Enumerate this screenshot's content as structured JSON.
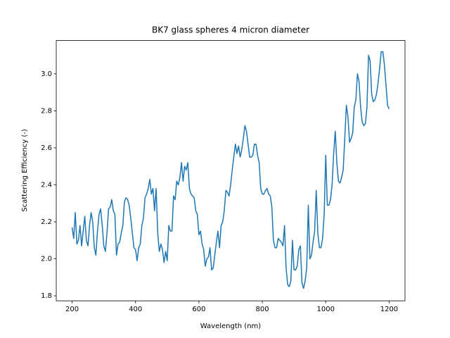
{
  "chart_data": {
    "type": "line",
    "title": "BK7 glass spheres 4 micron diameter",
    "x_label": "Wavelength (nm)",
    "y_label": "Scattering Efficiency (-)",
    "x": [
      200,
      205,
      210,
      215,
      220,
      225,
      230,
      235,
      240,
      245,
      250,
      255,
      260,
      265,
      270,
      275,
      280,
      285,
      290,
      295,
      300,
      305,
      310,
      315,
      320,
      325,
      330,
      335,
      340,
      345,
      350,
      355,
      360,
      365,
      370,
      375,
      380,
      385,
      390,
      395,
      400,
      405,
      410,
      415,
      420,
      425,
      430,
      435,
      440,
      445,
      450,
      455,
      460,
      465,
      470,
      475,
      480,
      485,
      490,
      495,
      500,
      505,
      510,
      515,
      520,
      525,
      530,
      535,
      540,
      545,
      550,
      555,
      560,
      565,
      570,
      575,
      580,
      585,
      590,
      595,
      600,
      605,
      610,
      615,
      620,
      625,
      630,
      635,
      640,
      645,
      650,
      655,
      660,
      665,
      670,
      675,
      680,
      685,
      690,
      695,
      700,
      705,
      710,
      715,
      720,
      725,
      730,
      735,
      740,
      745,
      750,
      755,
      760,
      765,
      770,
      775,
      780,
      785,
      790,
      795,
      800,
      805,
      810,
      815,
      820,
      825,
      830,
      835,
      840,
      845,
      850,
      855,
      860,
      865,
      870,
      875,
      880,
      885,
      890,
      895,
      900,
      905,
      910,
      915,
      920,
      925,
      930,
      935,
      940,
      945,
      950,
      955,
      960,
      965,
      970,
      975,
      980,
      985,
      990,
      995,
      1000,
      1005,
      1010,
      1015,
      1020,
      1025,
      1030,
      1035,
      1040,
      1045,
      1050,
      1055,
      1060,
      1065,
      1070,
      1075,
      1080,
      1085,
      1090,
      1095,
      1100,
      1105,
      1110,
      1115,
      1120,
      1125,
      1130,
      1135,
      1140,
      1145,
      1150,
      1155,
      1160,
      1165,
      1170,
      1175,
      1180,
      1185,
      1190,
      1195,
      1200
    ],
    "series": [
      {
        "color": "#1f77b4",
        "values": [
          2.17,
          2.11,
          2.25,
          2.08,
          2.1,
          2.18,
          2.07,
          2.15,
          2.23,
          2.1,
          2.07,
          2.18,
          2.25,
          2.2,
          2.06,
          2.02,
          2.15,
          2.24,
          2.27,
          2.18,
          2.07,
          2.04,
          2.14,
          2.27,
          2.28,
          2.32,
          2.26,
          2.24,
          2.02,
          2.08,
          2.09,
          2.14,
          2.18,
          2.31,
          2.33,
          2.32,
          2.29,
          2.22,
          2.14,
          2.06,
          2.05,
          1.99,
          2.06,
          2.08,
          2.18,
          2.22,
          2.33,
          2.35,
          2.38,
          2.43,
          2.35,
          2.38,
          2.26,
          2.38,
          2.14,
          2.04,
          2.08,
          2.05,
          1.98,
          2.04,
          1.99,
          2.18,
          2.15,
          2.15,
          2.34,
          2.32,
          2.42,
          2.4,
          2.44,
          2.52,
          2.42,
          2.5,
          2.48,
          2.52,
          2.38,
          2.35,
          2.34,
          2.33,
          2.26,
          2.24,
          2.13,
          2.15,
          2.08,
          2.05,
          1.96,
          2.0,
          2.01,
          2.06,
          1.94,
          1.95,
          2.02,
          2.09,
          2.15,
          2.06,
          2.18,
          2.2,
          2.26,
          2.37,
          2.36,
          2.34,
          2.4,
          2.48,
          2.55,
          2.62,
          2.57,
          2.61,
          2.55,
          2.59,
          2.65,
          2.72,
          2.69,
          2.62,
          2.55,
          2.55,
          2.56,
          2.62,
          2.62,
          2.56,
          2.52,
          2.38,
          2.35,
          2.35,
          2.37,
          2.38,
          2.35,
          2.34,
          2.28,
          2.1,
          2.06,
          2.06,
          2.11,
          2.1,
          2.09,
          2.07,
          2.18,
          1.95,
          1.86,
          1.85,
          1.88,
          2.1,
          1.94,
          1.94,
          1.96,
          2.05,
          2.07,
          1.87,
          1.84,
          1.88,
          1.95,
          2.29,
          2.0,
          2.02,
          2.09,
          2.15,
          2.37,
          2.14,
          2.06,
          2.06,
          2.11,
          2.24,
          2.56,
          2.29,
          2.29,
          2.32,
          2.4,
          2.57,
          2.69,
          2.52,
          2.42,
          2.41,
          2.44,
          2.48,
          2.65,
          2.83,
          2.77,
          2.63,
          2.65,
          2.68,
          2.82,
          2.86,
          3.0,
          2.96,
          2.82,
          2.74,
          2.72,
          2.73,
          2.82,
          3.1,
          3.07,
          2.89,
          2.85,
          2.86,
          2.89,
          2.95,
          3.03,
          3.12,
          3.12,
          3.05,
          2.94,
          2.83,
          2.81
        ]
      }
    ],
    "xlim": [
      150,
      1250
    ],
    "ylim": [
      1.773,
      3.18
    ],
    "xticks": [
      200,
      400,
      600,
      800,
      1000,
      1200
    ],
    "yticks": [
      1.8,
      {
        "value": 2,
        "label": "2.0"
      },
      2.2,
      2.4,
      2.6,
      2.8,
      {
        "value": 3,
        "label": "3.0"
      }
    ]
  }
}
